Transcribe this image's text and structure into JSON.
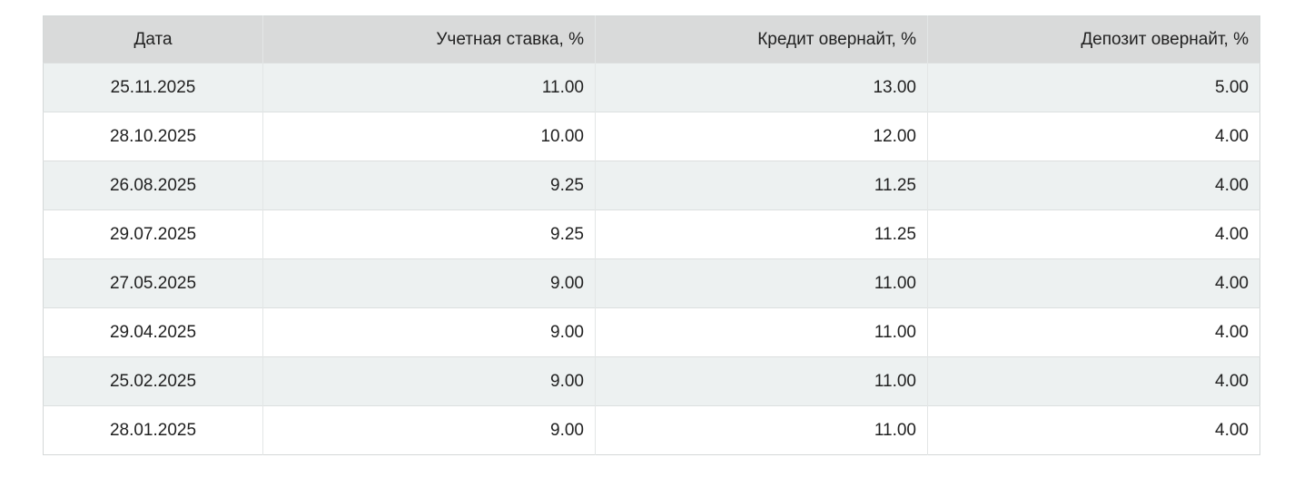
{
  "colors": {
    "header_bg": "#d9dada",
    "stripe_bg": "#edf1f1",
    "row_bg": "#ffffff",
    "border_outer": "#d4d8d8",
    "border_row": "#dcdfdf",
    "border_col": "#e3e6e6",
    "text": "#212121"
  },
  "chart_data": {
    "type": "table",
    "columns": [
      {
        "name": "date",
        "label": "Дата",
        "align": "center"
      },
      {
        "name": "discount-rate",
        "label": "Учетная ставка, %",
        "align": "right"
      },
      {
        "name": "overnight-credit",
        "label": "Кредит овернайт, %",
        "align": "right"
      },
      {
        "name": "overnight-deposit",
        "label": "Депозит овернайт, %",
        "align": "right"
      }
    ],
    "rows": [
      [
        "25.11.2025",
        "11.00",
        "13.00",
        "5.00"
      ],
      [
        "28.10.2025",
        "10.00",
        "12.00",
        "4.00"
      ],
      [
        "26.08.2025",
        "9.25",
        "11.25",
        "4.00"
      ],
      [
        "29.07.2025",
        "9.25",
        "11.25",
        "4.00"
      ],
      [
        "27.05.2025",
        "9.00",
        "11.00",
        "4.00"
      ],
      [
        "29.04.2025",
        "9.00",
        "11.00",
        "4.00"
      ],
      [
        "25.02.2025",
        "9.00",
        "11.00",
        "4.00"
      ],
      [
        "28.01.2025",
        "9.00",
        "11.00",
        "4.00"
      ]
    ]
  }
}
